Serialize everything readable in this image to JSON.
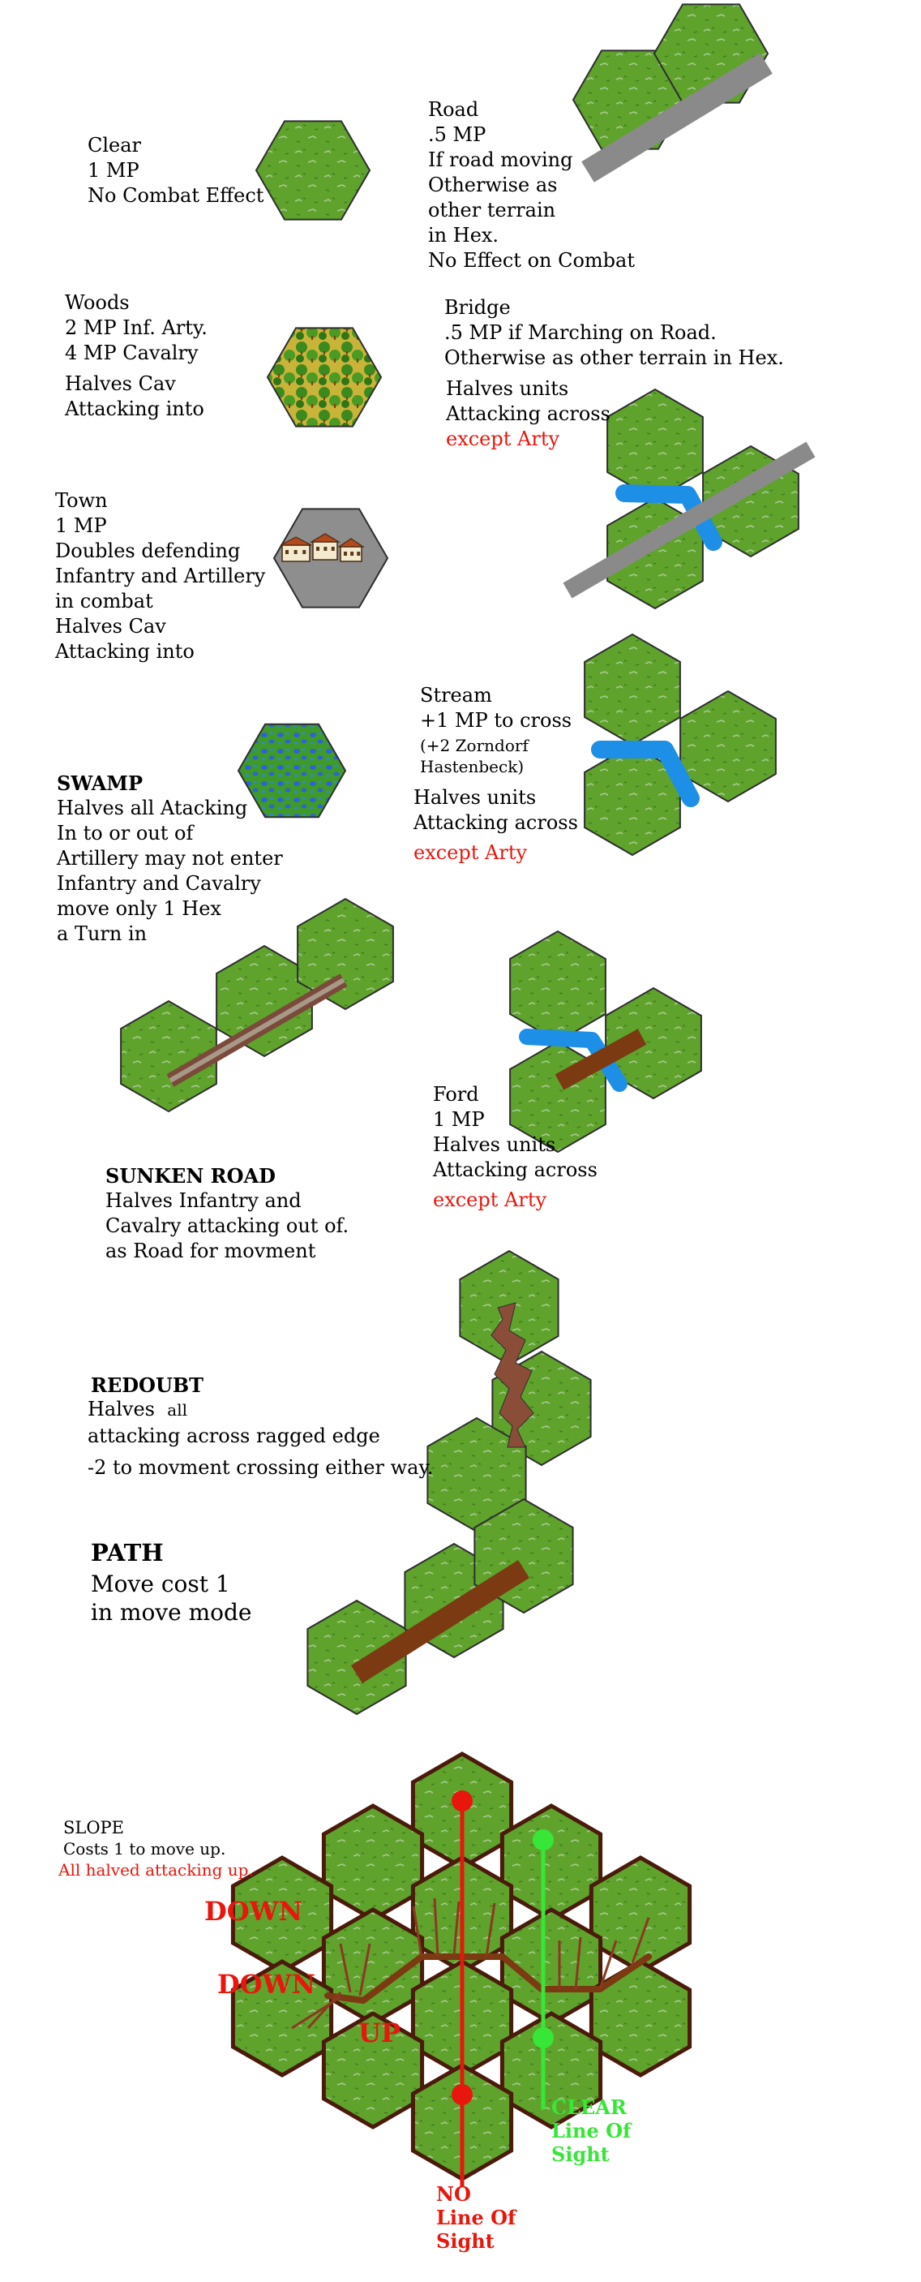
{
  "colors": {
    "grass": "#5fa32d",
    "grass_dark": "#4a8a22",
    "hex_border": "#2e2e2e",
    "road": "#8a8a8a",
    "stream": "#1e8fe6",
    "sunken_road": "#7a4a3a",
    "path": "#7b3a12",
    "redoubt": "#8a4e38",
    "town_ground": "#8e8e8e",
    "swamp_water": "#2b64d6",
    "woods_leaf": "#3c8a1e",
    "woods_ground": "#c9b43a",
    "no_los": "#e8160c",
    "clear_los": "#37e637"
  },
  "clear": {
    "title": "Clear",
    "lines": [
      "1 MP",
      "No Combat Effect"
    ]
  },
  "road": {
    "title": "Road",
    "lines": [
      ".5 MP",
      "If road moving",
      "Otherwise as",
      "other terrain",
      "in Hex.",
      "No Effect on Combat"
    ]
  },
  "woods": {
    "title": "Woods",
    "lines": [
      "2 MP Inf. Arty.",
      "4 MP Cavalry",
      "",
      "Halves Cav",
      "Attacking into"
    ]
  },
  "bridge": {
    "title": "Bridge",
    "lines": [
      ".5 MP if Marching on Road.",
      "Otherwise as other terrain in Hex.",
      "Halves units",
      "Attacking across"
    ],
    "exception": "except Arty"
  },
  "town": {
    "title": "Town",
    "lines": [
      "1 MP",
      "Doubles defending",
      "Infantry and Artillery",
      "in combat",
      "Halves Cav",
      "Attacking into"
    ]
  },
  "stream": {
    "title": "Stream",
    "lines": [
      "+1 MP to cross",
      "(+2 Zorndorf",
      "Hastenbeck)"
    ],
    "lines2": [
      "Halves units",
      "Attacking across"
    ],
    "exception": "except Arty"
  },
  "swamp": {
    "title": "SWAMP",
    "lines": [
      "Halves all Atacking",
      "In to or out of",
      "Artillery may not enter",
      "Infantry and Cavalry",
      "move only 1 Hex",
      "a Turn in"
    ]
  },
  "ford": {
    "title": "Ford",
    "lines": [
      "1 MP",
      "Halves units",
      "Attacking across"
    ],
    "exception": "except Arty"
  },
  "sunken_road": {
    "title": "SUNKEN ROAD",
    "lines": [
      "Halves Infantry and",
      "Cavalry attacking out of.",
      "as Road for movment"
    ]
  },
  "redoubt": {
    "title": "REDOUBT",
    "line1": "Halves",
    "line1_small": "all",
    "lines": [
      "attacking across ragged edge",
      "-2 to movment crossing either way."
    ]
  },
  "path": {
    "title": "PATH",
    "lines": [
      "Move cost 1",
      "in move mode"
    ]
  },
  "slope": {
    "title": "SLOPE",
    "line1": "Costs 1 to move up.",
    "line2": "All halved attacking up."
  },
  "slope_labels": {
    "down1": "DOWN",
    "down2": "DOWN",
    "up": "UP"
  },
  "los": {
    "no": [
      "NO",
      "Line Of",
      "Sight"
    ],
    "clear": [
      "CLEAR",
      "Line Of",
      "Sight"
    ]
  }
}
